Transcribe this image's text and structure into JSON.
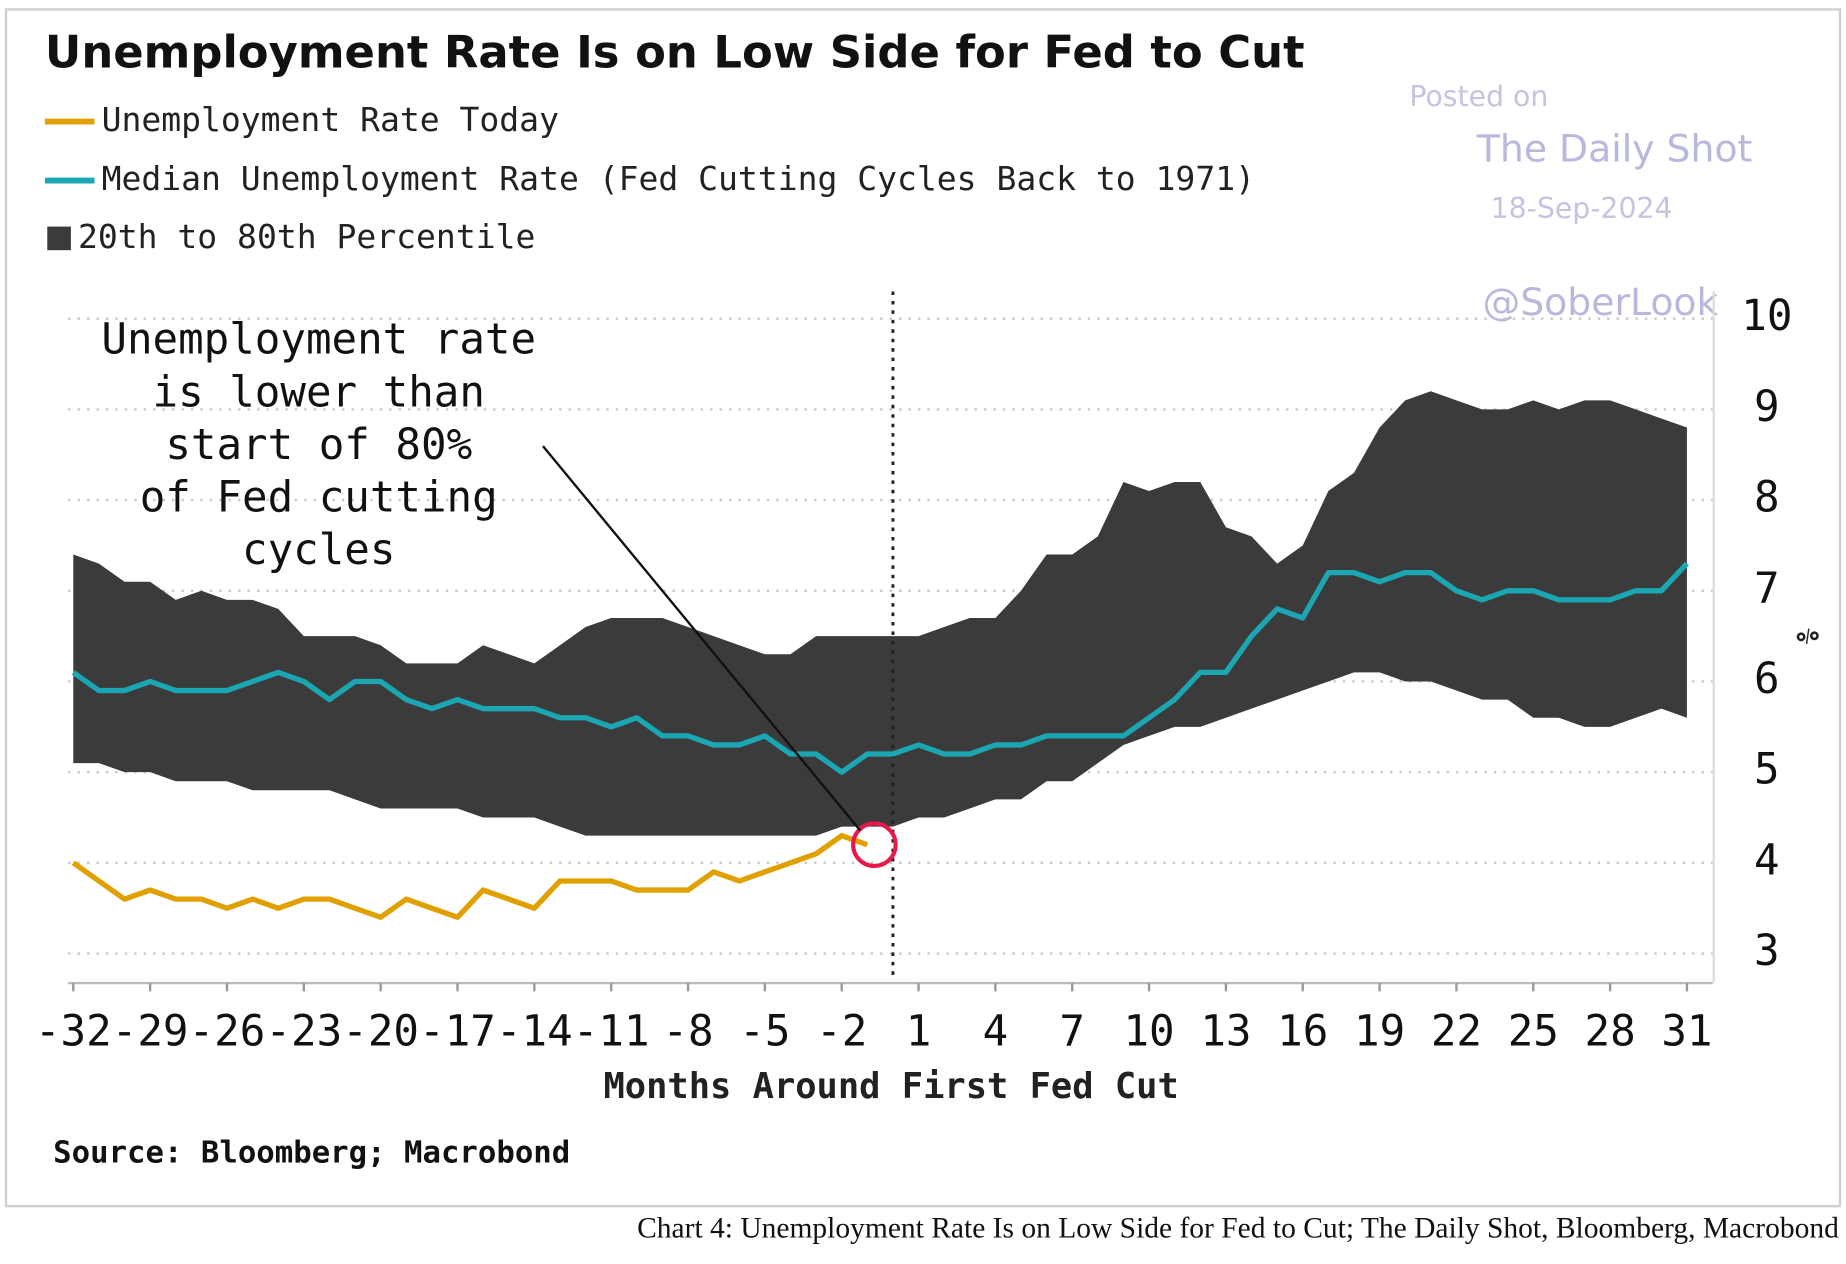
{
  "chart_data": {
    "type": "line",
    "title": "Unemployment Rate Is on Low Side for Fed to Cut",
    "x_label": "Months Around First Fed Cut",
    "y_label": "%",
    "source": "Source: Bloomberg; Macrobond",
    "caption": "Chart 4:  Unemployment Rate Is on Low Side for Fed to Cut; The Daily Shot, Bloomberg, Macrobond",
    "watermark": [
      "Posted on",
      "The Daily Shot",
      "18-Sep-2024",
      "@SoberLook"
    ],
    "annotation": {
      "lines": [
        "Unemployment rate",
        "is lower than",
        "start of 80%",
        "of Fed cutting",
        "cycles"
      ]
    },
    "vline_x": 0,
    "x": [
      -32,
      -31,
      -30,
      -29,
      -28,
      -27,
      -26,
      -25,
      -24,
      -23,
      -22,
      -21,
      -20,
      -19,
      -18,
      -17,
      -16,
      -15,
      -14,
      -13,
      -12,
      -11,
      -10,
      -9,
      -8,
      -7,
      -6,
      -5,
      -4,
      -3,
      -2,
      -1,
      0,
      1,
      2,
      3,
      4,
      5,
      6,
      7,
      8,
      9,
      10,
      11,
      12,
      13,
      14,
      15,
      16,
      17,
      18,
      19,
      20,
      21,
      22,
      23,
      24,
      25,
      26,
      27,
      28,
      29,
      30,
      31
    ],
    "series": [
      {
        "name": "Unemployment Rate Today",
        "color": "#e0a000",
        "values": [
          4.0,
          3.8,
          3.6,
          3.7,
          3.6,
          3.6,
          3.5,
          3.6,
          3.5,
          3.6,
          3.6,
          3.5,
          3.4,
          3.6,
          3.5,
          3.4,
          3.7,
          3.6,
          3.5,
          3.8,
          3.8,
          3.8,
          3.7,
          3.7,
          3.7,
          3.9,
          3.8,
          3.9,
          4.0,
          4.1,
          4.3,
          4.2,
          null,
          null,
          null,
          null,
          null,
          null,
          null,
          null,
          null,
          null,
          null,
          null,
          null,
          null,
          null,
          null,
          null,
          null,
          null,
          null,
          null,
          null,
          null,
          null,
          null,
          null,
          null,
          null,
          null,
          null,
          null,
          null
        ]
      },
      {
        "name": "Median Unemployment Rate (Fed Cutting Cycles Back to 1971)",
        "color": "#1ba6b4",
        "values": [
          6.1,
          5.9,
          5.9,
          6.0,
          5.9,
          5.9,
          5.9,
          6.0,
          6.1,
          6.0,
          5.8,
          6.0,
          6.0,
          5.8,
          5.7,
          5.8,
          5.7,
          5.7,
          5.7,
          5.6,
          5.6,
          5.5,
          5.6,
          5.4,
          5.4,
          5.3,
          5.3,
          5.4,
          5.2,
          5.2,
          5.0,
          5.2,
          5.2,
          5.3,
          5.2,
          5.2,
          5.3,
          5.3,
          5.4,
          5.4,
          5.4,
          5.4,
          5.6,
          5.8,
          6.1,
          6.1,
          6.5,
          6.8,
          6.7,
          7.2,
          7.2,
          7.1,
          7.2,
          7.2,
          7.0,
          6.9,
          7.0,
          7.0,
          6.9,
          6.9,
          6.9,
          7.0,
          7.0,
          7.3
        ]
      }
    ],
    "band": {
      "name": "20th to 80th Percentile",
      "color": "#3b3b3b",
      "lower": [
        5.1,
        5.1,
        5.0,
        5.0,
        4.9,
        4.9,
        4.9,
        4.8,
        4.8,
        4.8,
        4.8,
        4.7,
        4.6,
        4.6,
        4.6,
        4.6,
        4.5,
        4.5,
        4.5,
        4.4,
        4.3,
        4.3,
        4.3,
        4.3,
        4.3,
        4.3,
        4.3,
        4.3,
        4.3,
        4.3,
        4.4,
        4.4,
        4.4,
        4.5,
        4.5,
        4.6,
        4.7,
        4.7,
        4.9,
        4.9,
        5.1,
        5.3,
        5.4,
        5.5,
        5.5,
        5.6,
        5.7,
        5.8,
        5.9,
        6.0,
        6.1,
        6.1,
        6.0,
        6.0,
        5.9,
        5.8,
        5.8,
        5.6,
        5.6,
        5.5,
        5.5,
        5.6,
        5.7,
        5.6
      ],
      "upper": [
        7.4,
        7.3,
        7.1,
        7.1,
        6.9,
        7.0,
        6.9,
        6.9,
        6.8,
        6.5,
        6.5,
        6.5,
        6.4,
        6.2,
        6.2,
        6.2,
        6.4,
        6.3,
        6.2,
        6.4,
        6.6,
        6.7,
        6.7,
        6.7,
        6.6,
        6.5,
        6.4,
        6.3,
        6.3,
        6.5,
        6.5,
        6.5,
        6.5,
        6.5,
        6.6,
        6.7,
        6.7,
        7.0,
        7.4,
        7.4,
        7.6,
        8.2,
        8.1,
        8.2,
        8.2,
        7.7,
        7.6,
        7.3,
        7.5,
        8.1,
        8.3,
        8.8,
        9.1,
        9.2,
        9.1,
        9.0,
        9.0,
        9.1,
        9.0,
        9.1,
        9.1,
        9.0,
        8.9,
        8.8
      ]
    },
    "xlim": [
      -32.2,
      32
    ],
    "ylim": [
      2.7,
      10.3
    ],
    "xticks": [
      -32,
      -29,
      -26,
      -23,
      -20,
      -17,
      -14,
      -11,
      -8,
      -5,
      -2,
      1,
      4,
      7,
      10,
      13,
      16,
      19,
      22,
      25,
      28,
      31
    ],
    "yticks": [
      3,
      4,
      5,
      6,
      7,
      8,
      9,
      10
    ],
    "grid": true
  }
}
